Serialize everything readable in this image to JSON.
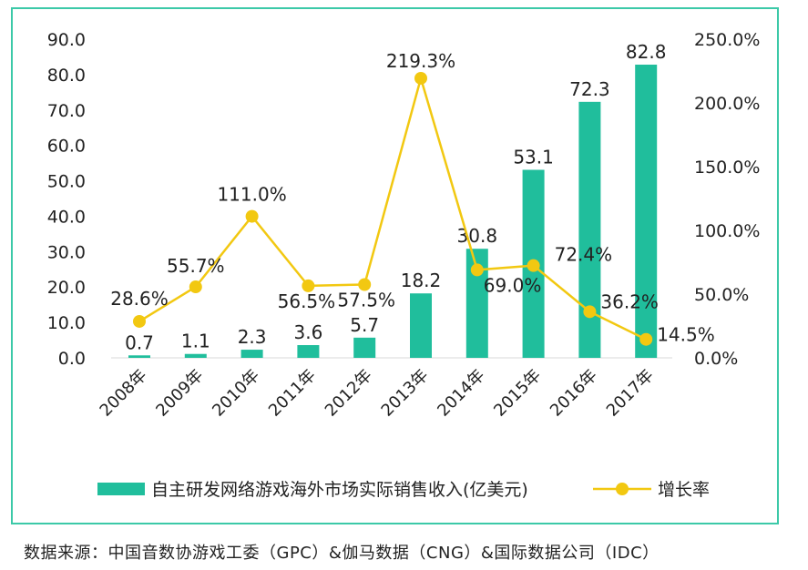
{
  "source_note": "数据来源：中国音数协游戏工委（GPC）&伽马数据（CNG）&国际数据公司（IDC）",
  "colors": {
    "bar": "#20be9c",
    "line": "#f2c811",
    "frame": "#3cc9a8",
    "text": "#222222"
  },
  "chart_data": {
    "type": "bar",
    "categories": [
      "2008年",
      "2009年",
      "2010年",
      "2011年",
      "2012年",
      "2013年",
      "2014年",
      "2015年",
      "2016年",
      "2017年"
    ],
    "series": [
      {
        "name": "自主研发网络游戏海外市场实际销售收入(亿美元)",
        "type": "bar",
        "axis": "left",
        "values": [
          0.7,
          1.1,
          2.3,
          3.6,
          5.7,
          18.2,
          30.8,
          53.1,
          72.3,
          82.8
        ],
        "labels": [
          "0.7",
          "1.1",
          "2.3",
          "3.6",
          "5.7",
          "18.2",
          "30.8",
          "53.1",
          "72.3",
          "82.8"
        ]
      },
      {
        "name": "增长率",
        "type": "line",
        "axis": "right",
        "values": [
          28.6,
          55.7,
          111.0,
          56.5,
          57.5,
          219.3,
          69.0,
          72.4,
          36.2,
          14.5
        ],
        "labels": [
          "28.6%",
          "55.7%",
          "111.0%",
          "56.5%",
          "57.5%",
          "219.3%",
          "69.0%",
          "72.4%",
          "36.2%",
          "14.5%"
        ]
      }
    ],
    "y_left": {
      "min": 0,
      "max": 90,
      "ticks": [
        "0.0",
        "10.0",
        "20.0",
        "30.0",
        "40.0",
        "50.0",
        "60.0",
        "70.0",
        "80.0",
        "90.0"
      ]
    },
    "y_right": {
      "min": 0,
      "max": 250,
      "ticks": [
        "0.0%",
        "50.0%",
        "100.0%",
        "150.0%",
        "200.0%",
        "250.0%"
      ]
    },
    "grid": false,
    "legend_position": "bottom"
  }
}
